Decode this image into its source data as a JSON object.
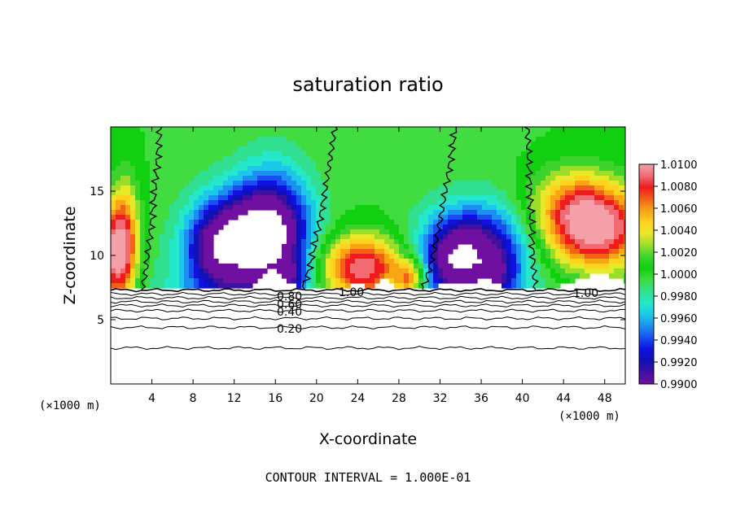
{
  "chart_data": {
    "type": "heatmap",
    "title": "saturation ratio",
    "xlabel": "X-coordinate",
    "ylabel": "Z-coordinate",
    "x_unit_left": "(×1000 m)",
    "x_unit_right": "(×1000 m)",
    "xlim": [
      0,
      50
    ],
    "ylim": [
      0,
      20
    ],
    "x_ticks": [
      4,
      8,
      12,
      16,
      20,
      24,
      28,
      32,
      36,
      40,
      44,
      48
    ],
    "y_ticks": [
      5,
      10,
      15
    ],
    "colorbar": {
      "labels": [
        "1.0100",
        "1.0080",
        "1.0060",
        "1.0040",
        "1.0020",
        "1.0000",
        "0.9980",
        "0.9960",
        "0.9940",
        "0.9920",
        "0.9900"
      ],
      "min": 0.99,
      "max": 1.01,
      "colors": [
        "#f4a0a8",
        "#f26a72",
        "#ee1c1c",
        "#f2601a",
        "#f8a614",
        "#ffd21e",
        "#e6e82a",
        "#9ade2a",
        "#3cd42c",
        "#10d010",
        "#40dc40",
        "#30e090",
        "#24e8c8",
        "#1cc8e8",
        "#1a90f0",
        "#1850f0",
        "#1010e0",
        "#1010b8",
        "#4010a0",
        "#7010a0"
      ]
    },
    "contour_labels": [
      "0.80",
      "0.60",
      "0.40",
      "0.20",
      "1.00",
      "1.00"
    ],
    "contour_levels": [
      0.2,
      0.4,
      0.6,
      0.8,
      1.0
    ],
    "contour_interval_note": "CONTOUR INTERVAL = 1.000E-01"
  },
  "colors": {
    "background": "#ffffff",
    "axes": "#000000",
    "blank_region": "#ffffff"
  }
}
